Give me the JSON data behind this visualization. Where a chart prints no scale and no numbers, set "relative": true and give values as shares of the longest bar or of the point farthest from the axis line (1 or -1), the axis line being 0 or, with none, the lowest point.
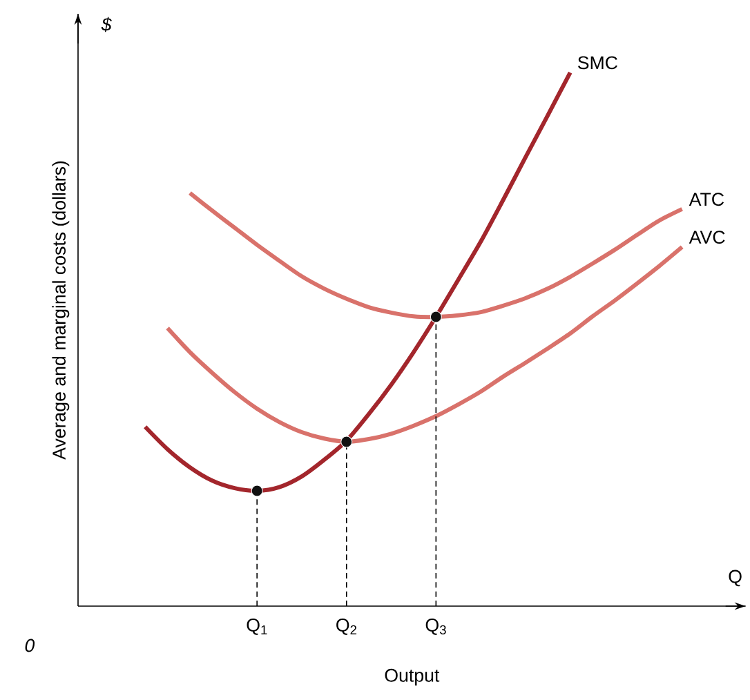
{
  "chart_data": {
    "type": "line",
    "relative": true,
    "xlabel": "Output",
    "ylabel": "Average and marginal costs (dollars)",
    "annotations": [
      "$",
      "Q",
      "0"
    ],
    "categories": [
      null,
      null,
      null,
      null,
      null,
      null,
      null,
      null,
      "Q$_{1}$",
      null,
      null,
      null,
      "Q$_{2}$",
      null,
      null,
      null,
      "Q$_{3}$",
      null,
      null,
      null,
      null,
      null,
      null,
      null,
      null,
      null,
      null,
      null,
      null,
      null
    ],
    "series": [
      {
        "name": "SMC",
        "color": "#a3262c",
        "values": [
          null,
          null,
          null,
          0.336,
          0.294,
          0.26,
          0.235,
          0.221,
          0.216,
          0.223,
          0.243,
          0.274,
          0.31,
          0.36,
          0.415,
          0.476,
          0.542,
          0.612,
          0.683,
          0.761,
          0.841,
          0.92,
          1.0,
          null,
          null,
          null,
          null,
          null,
          null,
          null
        ]
      },
      {
        "name": "ATC",
        "color": "#d9726b",
        "values": [
          null,
          null,
          null,
          null,
          null,
          0.774,
          0.741,
          0.709,
          0.677,
          0.647,
          0.618,
          0.595,
          0.576,
          0.56,
          0.55,
          0.543,
          0.542,
          0.545,
          0.551,
          0.563,
          0.577,
          0.595,
          0.617,
          0.642,
          0.668,
          0.696,
          0.723,
          0.744,
          null,
          null
        ]
      },
      {
        "name": "AVC",
        "color": "#d9726b",
        "values": [
          null,
          null,
          null,
          null,
          0.521,
          0.476,
          0.437,
          0.401,
          0.37,
          0.345,
          0.326,
          0.314,
          0.308,
          0.313,
          0.323,
          0.338,
          0.356,
          0.378,
          0.402,
          0.43,
          0.456,
          0.483,
          0.511,
          0.543,
          0.573,
          0.605,
          0.638,
          0.673,
          null,
          null
        ]
      },
      {
        "type": "scatter",
        "color": "#111111",
        "values": [
          null,
          null,
          null,
          null,
          null,
          null,
          null,
          null,
          0.216,
          null,
          null,
          null,
          0.308,
          null,
          null,
          null,
          0.542,
          null,
          null,
          null,
          null,
          null,
          null,
          null,
          null,
          null,
          null,
          null,
          null,
          null
        ]
      }
    ]
  }
}
